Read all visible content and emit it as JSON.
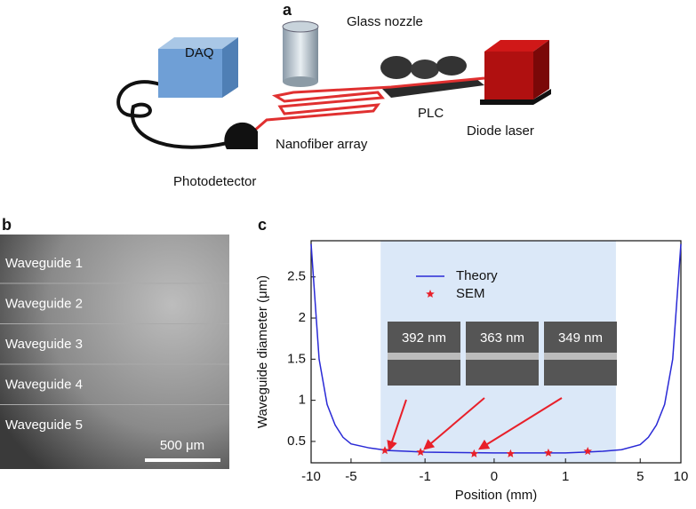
{
  "diagram": {
    "panel_label": "a",
    "labels": {
      "daq": "DAQ",
      "nozzle": "Glass nozzle",
      "plc": "PLC",
      "laser": "Diode laser",
      "array": "Nanofiber array",
      "detector": "Photodetector"
    }
  },
  "micrograph": {
    "panel_label": "b",
    "waveguides": [
      "Waveguide 1",
      "Waveguide 2",
      "Waveguide 3",
      "Waveguide 4",
      "Waveguide 5"
    ],
    "scale_bar": "500 μm"
  },
  "chart_data": {
    "type": "line",
    "panel_label": "c",
    "x_label": "Position (mm)",
    "y_label": "Waveguide diameter (μm)",
    "xlim": [
      -10,
      10
    ],
    "xticks": [
      -10,
      -5,
      -1,
      0,
      1,
      5,
      10
    ],
    "ylim": [
      0.24,
      2.94
    ],
    "yticks": [
      0.5,
      1.0,
      1.5,
      2.0,
      2.5
    ],
    "highlight_range": [
      -3.4,
      3.7
    ],
    "highlight_color": "#dbe8f8",
    "series": [
      {
        "name": "Theory",
        "color": "#2a2ad6",
        "x": [
          -10,
          -9,
          -8,
          -7,
          -6,
          -5,
          -4,
          -3,
          -2,
          -1,
          0,
          1,
          2,
          3,
          4,
          5,
          6,
          7,
          8,
          9,
          10
        ],
        "values": [
          2.9,
          1.5,
          0.95,
          0.7,
          0.55,
          0.47,
          0.42,
          0.39,
          0.38,
          0.37,
          0.36,
          0.36,
          0.37,
          0.38,
          0.4,
          0.46,
          0.55,
          0.7,
          0.95,
          1.5,
          2.9
        ]
      },
      {
        "name": "SEM",
        "color": "#e8202a",
        "marker": "star",
        "x": [
          -3.17,
          -1.24,
          -0.29,
          0.23,
          0.76,
          2.19
        ],
        "values": [
          0.39,
          0.37,
          0.35,
          0.35,
          0.36,
          0.38
        ]
      }
    ],
    "insets": [
      "392 nm",
      "363 nm",
      "349 nm"
    ]
  }
}
